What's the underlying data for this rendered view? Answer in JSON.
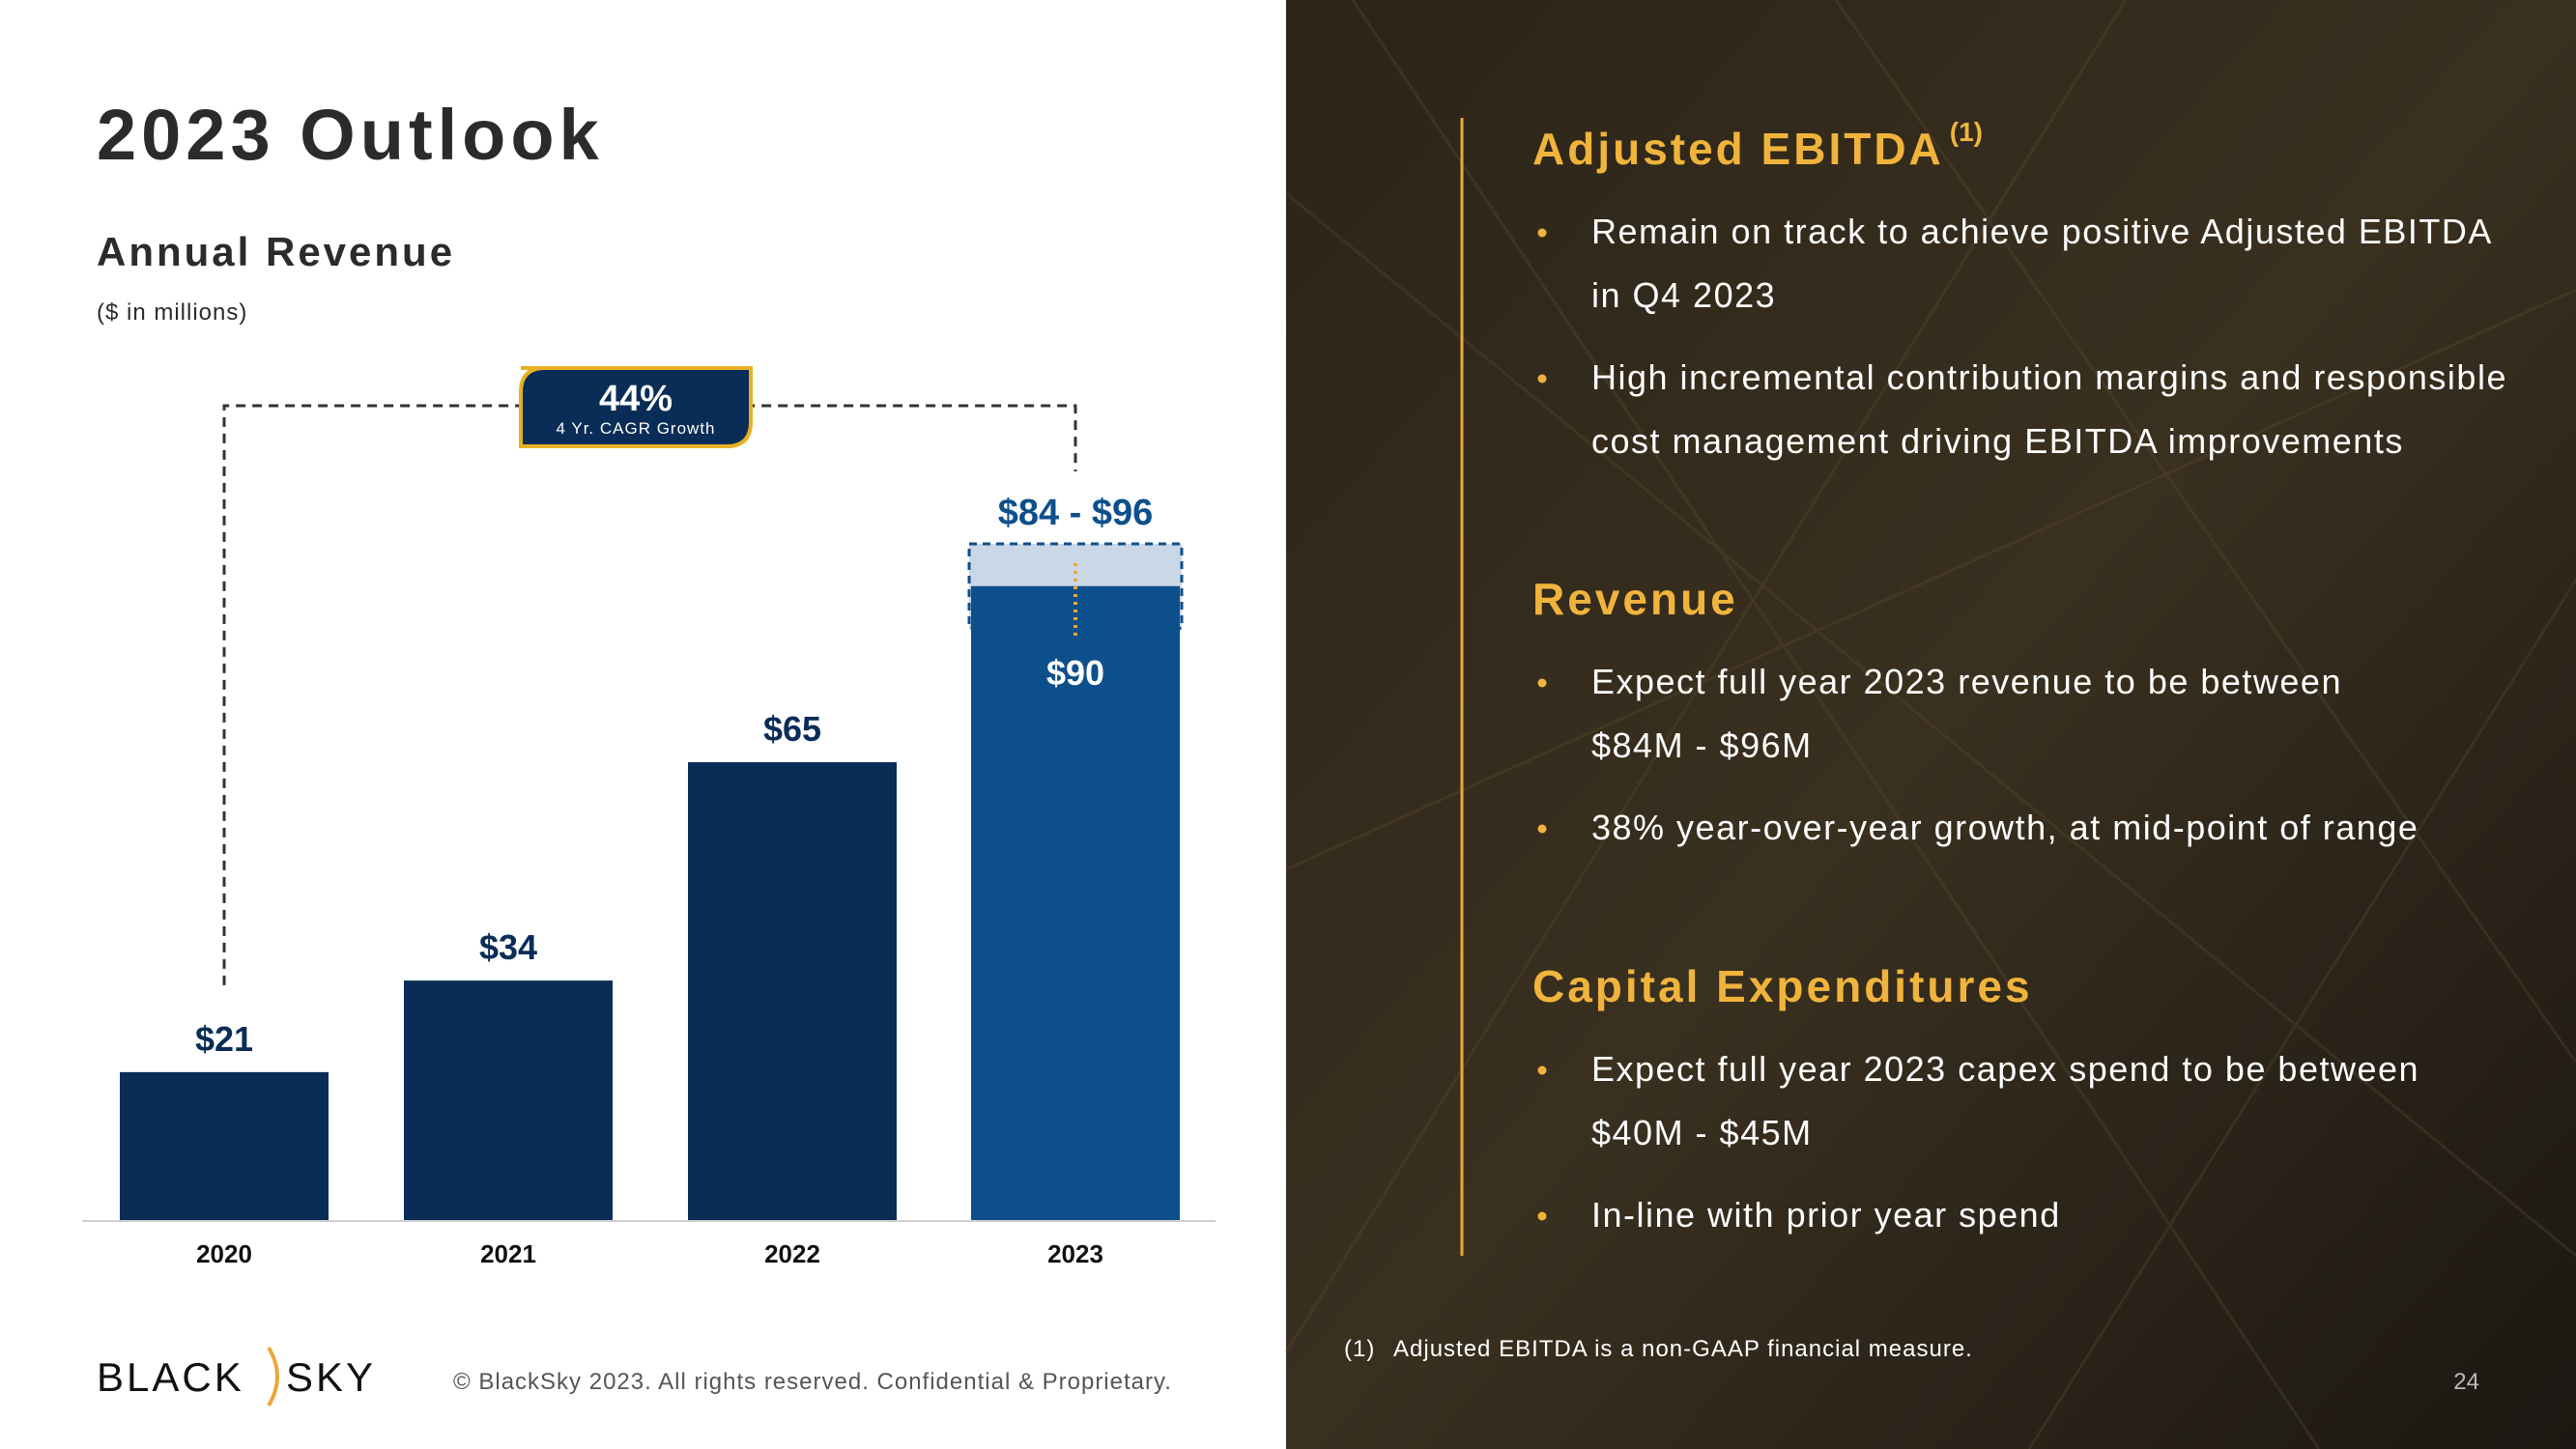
{
  "title": "2023 Outlook",
  "chart_data": {
    "type": "bar",
    "title": "Annual Revenue",
    "subtitle": "($ in millions)",
    "categories": [
      "2020",
      "2021",
      "2022",
      "2023"
    ],
    "values": [
      21,
      34,
      65,
      90
    ],
    "value_labels": [
      "$21",
      "$34",
      "$65",
      "$90"
    ],
    "colors": [
      "#0a2d57",
      "#0a2d57",
      "#0a2d57",
      "#0d4f8b"
    ],
    "range": {
      "low": 84,
      "high": 96,
      "label": "$84 - $96",
      "color": "#c9d7e6"
    },
    "cagr": {
      "value": 44,
      "label": "44%",
      "text": "4 Yr. CAGR Growth"
    }
  },
  "sections": [
    {
      "heading": "Adjusted EBITDA",
      "note": "(1)",
      "bullets": [
        [
          "Remain on track to achieve positive Adjusted EBITDA",
          "in Q4 2023"
        ],
        [
          "High incremental contribution margins and responsible",
          "cost management driving EBITDA improvements"
        ]
      ]
    },
    {
      "heading": "Revenue",
      "bullets": [
        [
          "Expect full year 2023 revenue to be between",
          "$84M - $96M"
        ],
        [
          "38% year-over-year growth, at mid-point of range"
        ]
      ]
    },
    {
      "heading": "Capital Expenditures",
      "bullets": [
        [
          "Expect full year 2023 capex spend to be between",
          "$40M - $45M"
        ],
        [
          "In-line with prior year spend"
        ]
      ]
    }
  ],
  "footnote": {
    "marker": "(1)",
    "text": "Adjusted EBITDA is a non-GAAP financial measure."
  },
  "footer": {
    "logo_left": "BLACK",
    "logo_right": "SKY",
    "copyright": "© BlackSky 2023. All rights reserved. Confidential & Proprietary.",
    "page": "24"
  }
}
